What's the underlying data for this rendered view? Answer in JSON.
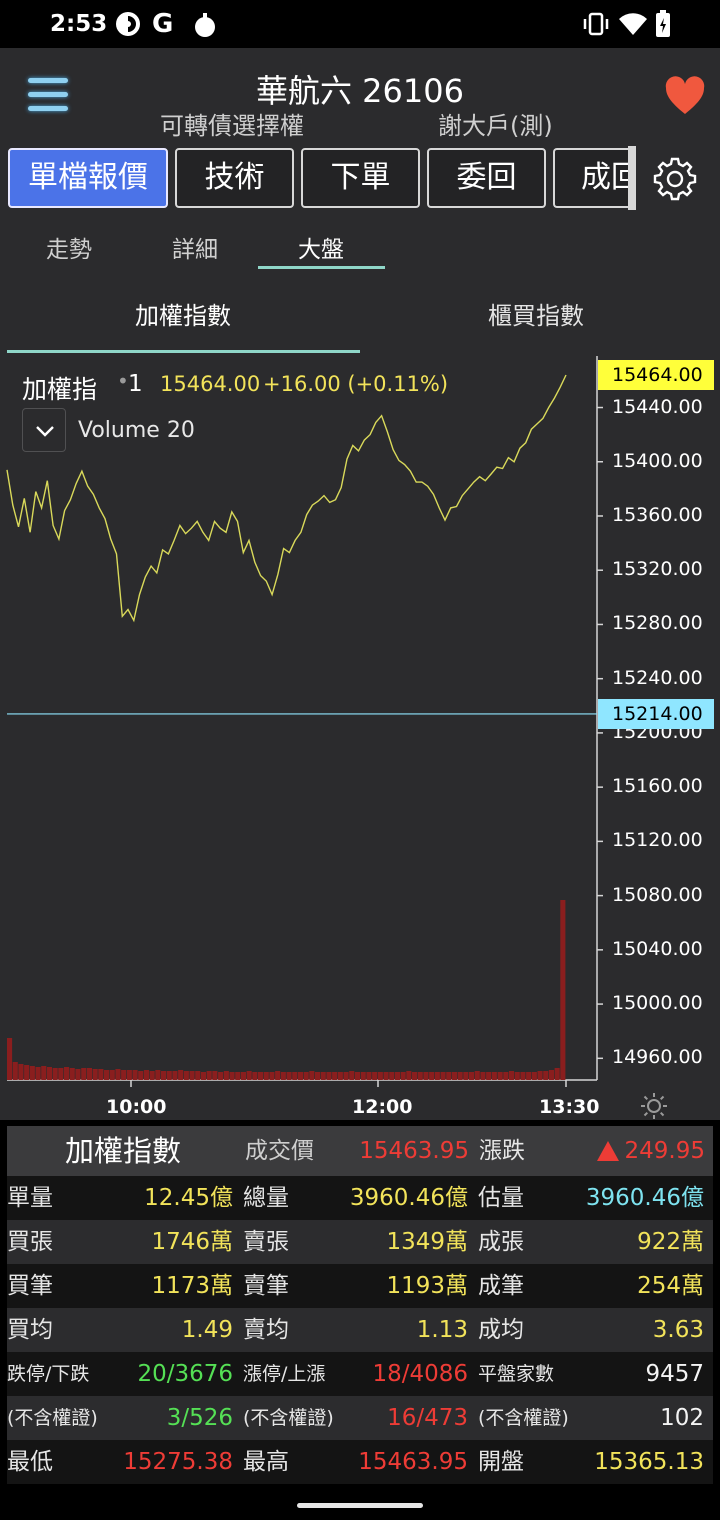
{
  "status_bar": {
    "time": "2:53",
    "icons_left": [
      "pinwheel-icon",
      "google-icon",
      "bomb-icon"
    ],
    "icons_right": [
      "vibrate-icon",
      "wifi-icon",
      "battery-icon"
    ]
  },
  "header": {
    "title": "華航六 26106",
    "subtitle_left": "可轉債選擇權",
    "subtitle_right": "謝大戶(測)"
  },
  "func_tabs": [
    {
      "label": "單檔報價",
      "active": true
    },
    {
      "label": "技術",
      "active": false
    },
    {
      "label": "下單",
      "active": false
    },
    {
      "label": "委回",
      "active": false
    },
    {
      "label": "成回",
      "active": false
    }
  ],
  "sub_tabs": [
    {
      "label": "走勢"
    },
    {
      "label": "詳細"
    },
    {
      "label": "大盤",
      "active": true
    }
  ],
  "index_tabs": [
    {
      "label": "加權指數",
      "active": true
    },
    {
      "label": "櫃買指數"
    }
  ],
  "chart_data": {
    "type": "line",
    "legend": {
      "name": "加權指",
      "interval": "1",
      "price": "15464.00",
      "change": "+16.00 (+0.11%)",
      "volume_label": "Volume 20"
    },
    "y_ticks": [
      "15440.00",
      "15400.00",
      "15360.00",
      "15320.00",
      "15280.00",
      "15240.00",
      "15200.00",
      "15160.00",
      "15120.00",
      "15080.00",
      "15040.00",
      "15000.00",
      "14960.00"
    ],
    "ylim": [
      14944,
      15478
    ],
    "x_ticks": [
      "10:00",
      "12:00",
      "13:30"
    ],
    "current_price_tag": "15464.00",
    "reference_tag": "15214.00",
    "reference_value": 15214,
    "price_color": "#d9d95a",
    "reference_color": "#8fe6ff",
    "volume_color": "#8a1e1e",
    "series_price": [
      15394,
      15368,
      15352,
      15373,
      15348,
      15378,
      15366,
      15386,
      15353,
      15343,
      15364,
      15372,
      15384,
      15393,
      15382,
      15376,
      15366,
      15358,
      15343,
      15332,
      15286,
      15291,
      15283,
      15302,
      15315,
      15323,
      15318,
      15335,
      15332,
      15342,
      15353,
      15347,
      15351,
      15356,
      15348,
      15342,
      15356,
      15351,
      15348,
      15363,
      15356,
      15333,
      15342,
      15326,
      15316,
      15312,
      15302,
      15317,
      15336,
      15333,
      15342,
      15348,
      15361,
      15368,
      15371,
      15375,
      15370,
      15372,
      15381,
      15402,
      15412,
      15408,
      15416,
      15420,
      15429,
      15434,
      15422,
      15409,
      15401,
      15398,
      15393,
      15385,
      15385,
      15382,
      15376,
      15366,
      15357,
      15366,
      15367,
      15375,
      15380,
      15385,
      15389,
      15386,
      15391,
      15396,
      15395,
      15403,
      15400,
      15410,
      15414,
      15424,
      15428,
      15432,
      15440,
      15447,
      15455,
      15464
    ],
    "series_volume": [
      42,
      18,
      16,
      15,
      14,
      13,
      14,
      13,
      12,
      12,
      13,
      12,
      11,
      12,
      12,
      11,
      11,
      10,
      10,
      11,
      10,
      10,
      10,
      9,
      10,
      9,
      10,
      9,
      9,
      9,
      10,
      9,
      9,
      9,
      8,
      9,
      9,
      8,
      9,
      8,
      8,
      8,
      9,
      8,
      8,
      8,
      8,
      9,
      8,
      8,
      8,
      8,
      8,
      9,
      8,
      8,
      8,
      8,
      8,
      8,
      9,
      8,
      8,
      8,
      8,
      8,
      8,
      8,
      8,
      8,
      9,
      8,
      8,
      8,
      8,
      8,
      8,
      8,
      8,
      8,
      8,
      8,
      9,
      8,
      8,
      8,
      8,
      8,
      9,
      8,
      8,
      8,
      8,
      9,
      9,
      10,
      12,
      180
    ]
  },
  "info_table": {
    "header": {
      "name": "加權指數",
      "price_label": "成交價",
      "price_value": "15463.95",
      "change_label": "漲跌",
      "change_value": "249.95",
      "change_icon": "up-triangle-icon"
    },
    "rows": [
      {
        "cells": [
          {
            "label": "單量",
            "value": "12.45億",
            "color": "#f2e35a"
          },
          {
            "label": "總量",
            "value": "3960.46億",
            "color": "#f2e35a"
          },
          {
            "label": "估量",
            "value": "3960.46億",
            "color": "#7ee3f0"
          }
        ]
      },
      {
        "cells": [
          {
            "label": "買張",
            "value": "1746萬",
            "color": "#f2e35a"
          },
          {
            "label": "賣張",
            "value": "1349萬",
            "color": "#f2e35a"
          },
          {
            "label": "成張",
            "value": "922萬",
            "color": "#f2e35a"
          }
        ]
      },
      {
        "cells": [
          {
            "label": "買筆",
            "value": "1173萬",
            "color": "#f2e35a"
          },
          {
            "label": "賣筆",
            "value": "1193萬",
            "color": "#f2e35a"
          },
          {
            "label": "成筆",
            "value": "254萬",
            "color": "#f2e35a"
          }
        ]
      },
      {
        "cells": [
          {
            "label": "買均",
            "value": "1.49",
            "color": "#f2e35a"
          },
          {
            "label": "賣均",
            "value": "1.13",
            "color": "#f2e35a"
          },
          {
            "label": "成均",
            "value": "3.63",
            "color": "#f2e35a"
          }
        ]
      },
      {
        "cells": [
          {
            "label": "跌停/下跌",
            "value": "20/3676",
            "color": "#55e055"
          },
          {
            "label": "漲停/上漲",
            "value": "18/4086",
            "color": "#ee3c36"
          },
          {
            "label": "平盤家數",
            "value": "9457",
            "color": "#f4f4f4"
          }
        ]
      },
      {
        "cells": [
          {
            "label": "(不含權證)",
            "value": "3/526",
            "color": "#55e055"
          },
          {
            "label": "(不含權證)",
            "value": "16/473",
            "color": "#ee3c36"
          },
          {
            "label": "(不含權證)",
            "value": "102",
            "color": "#f4f4f4"
          }
        ]
      },
      {
        "cells": [
          {
            "label": "最低",
            "value": "15275.38",
            "color": "#ee3c36"
          },
          {
            "label": "最高",
            "value": "15463.95",
            "color": "#ee3c36"
          },
          {
            "label": "開盤",
            "value": "15365.13",
            "color": "#f2e35a"
          }
        ]
      }
    ]
  }
}
